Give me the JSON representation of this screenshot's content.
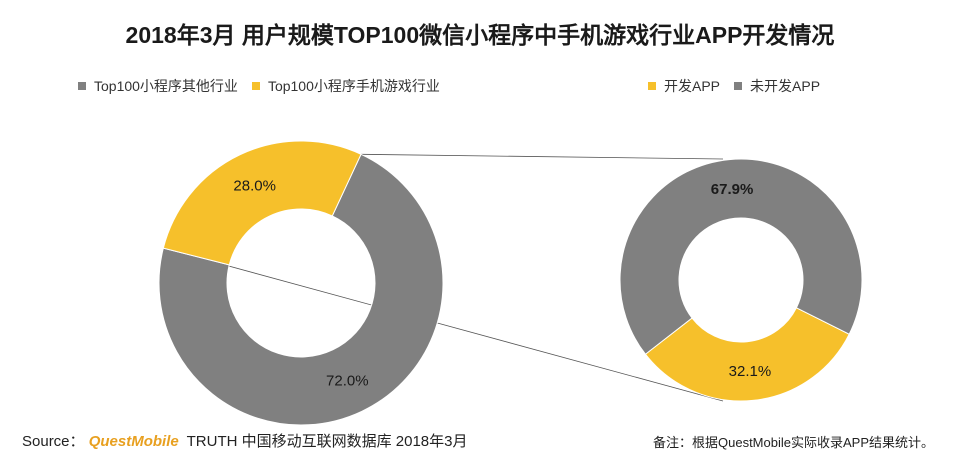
{
  "title": "2018年3月 用户规模TOP100微信小程序中手机游戏行业APP开发情况",
  "colors": {
    "gray": "#808080",
    "yellow": "#F6C02B",
    "brand": "#E8A020"
  },
  "chart_data": [
    {
      "type": "pie",
      "variant": "donut",
      "labels": [
        "Top100小程序其他行业",
        "Top100小程序手机游戏行业"
      ],
      "values": [
        72.0,
        28.0
      ],
      "value_labels": [
        "72.0%",
        "28.0%"
      ],
      "colors": [
        "#808080",
        "#F6C02B"
      ]
    },
    {
      "type": "pie",
      "variant": "donut",
      "labels": [
        "开发APP",
        "未开发APP"
      ],
      "values": [
        32.1,
        67.9
      ],
      "value_labels": [
        "32.1%",
        "67.9%"
      ],
      "colors": [
        "#F6C02B",
        "#808080"
      ]
    }
  ],
  "footer": {
    "source_prefix": "Source：",
    "brand": "QuestMobile",
    "source_rest": "TRUTH 中国移动互联网数据库 2018年3月",
    "note": "备注：根据QuestMobile实际收录APP结果统计。"
  }
}
